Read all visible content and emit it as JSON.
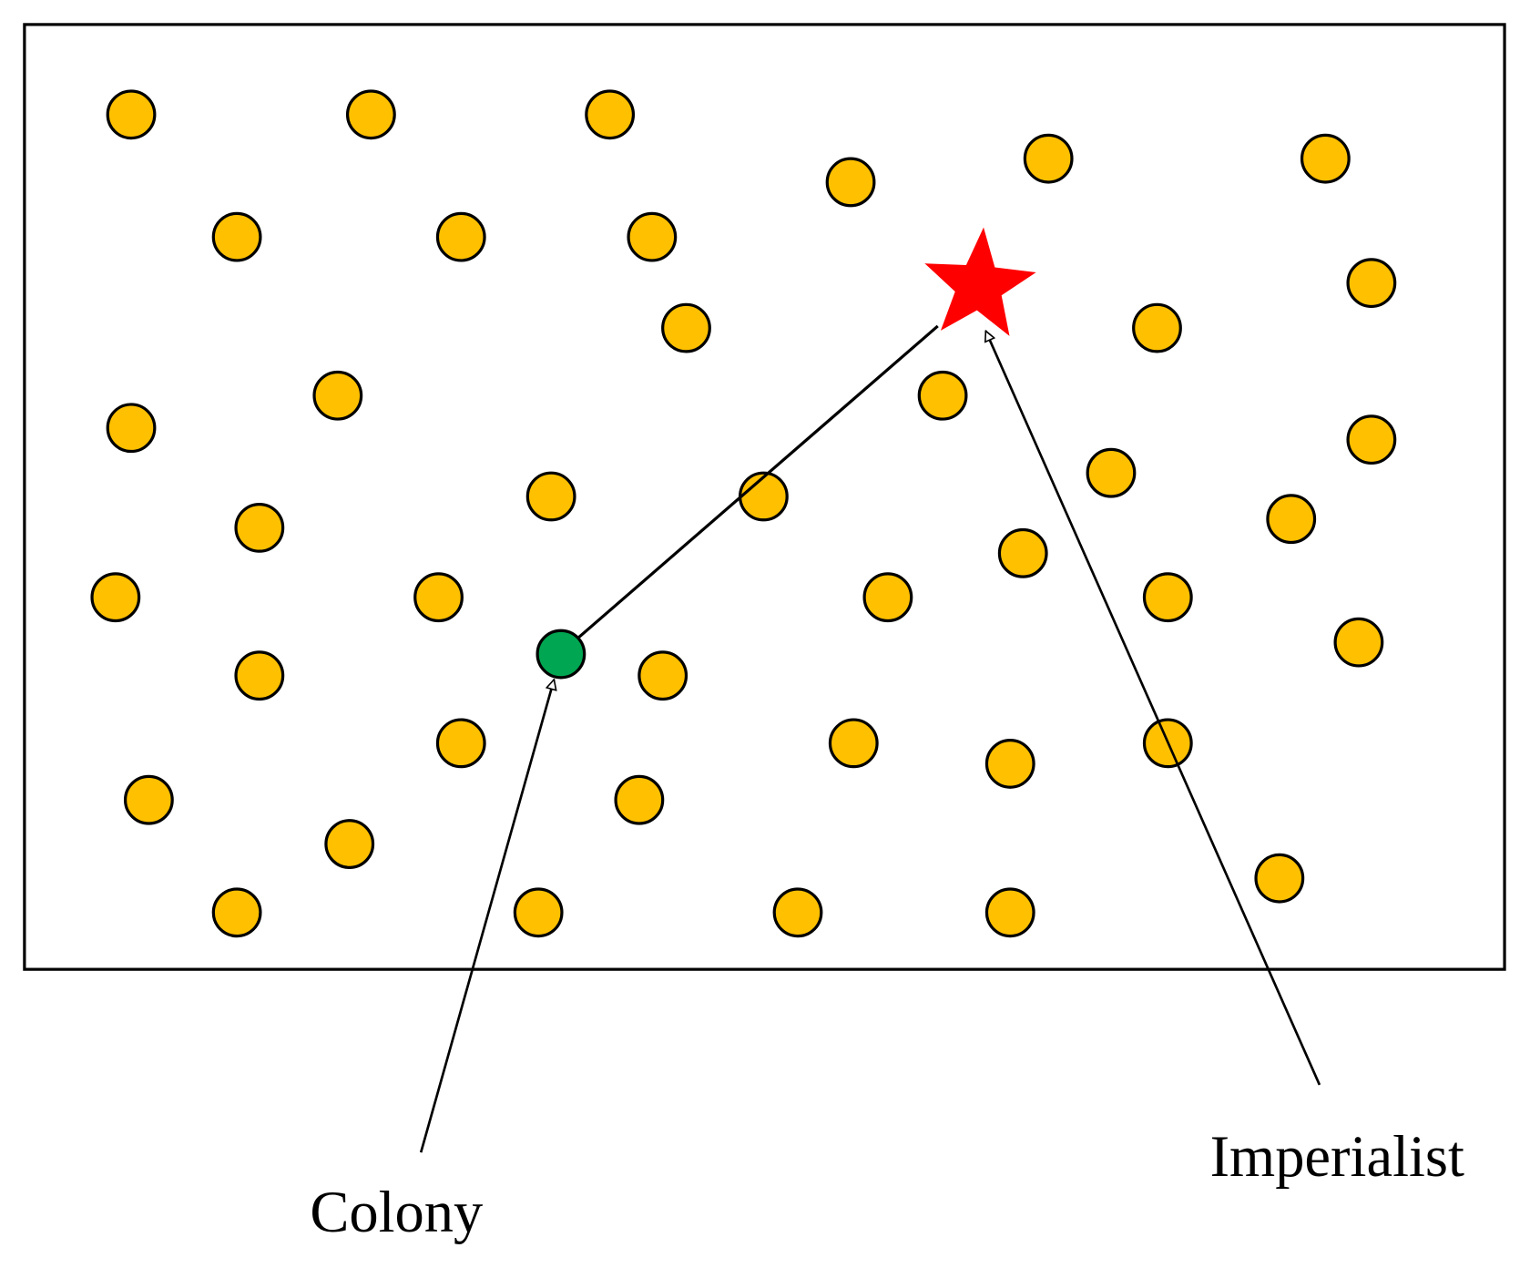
{
  "labels": {
    "colony": "Colony",
    "imperialist": "Imperialist"
  }
}
